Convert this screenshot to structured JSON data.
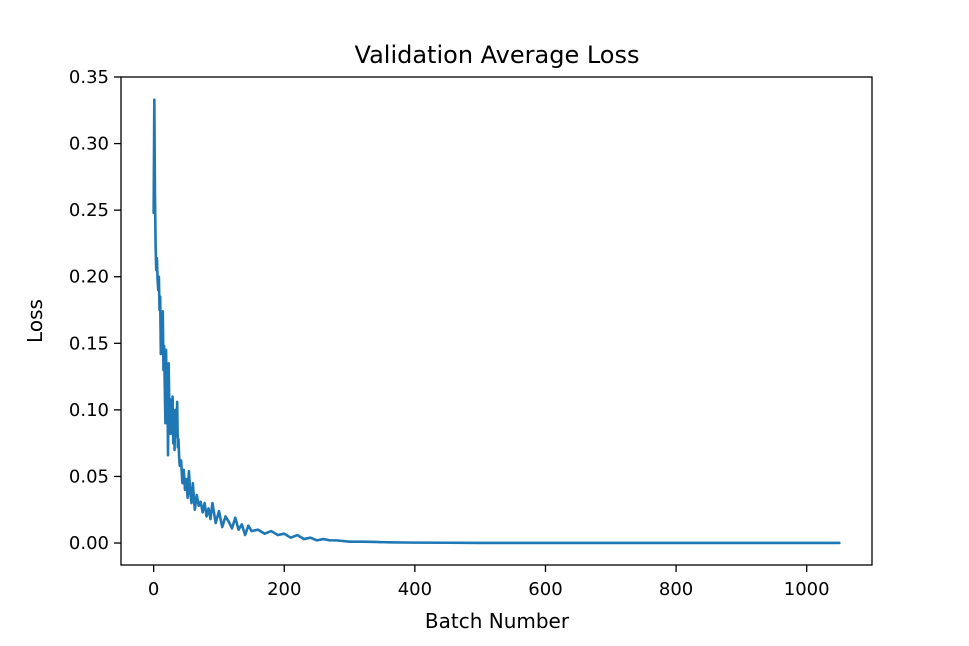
{
  "chart_data": {
    "type": "line",
    "title": "Validation Average Loss",
    "xlabel": "Batch Number",
    "ylabel": "Loss",
    "xlim": [
      -50,
      1100
    ],
    "ylim": [
      -0.0165,
      0.35
    ],
    "xticks": [
      0,
      200,
      400,
      600,
      800,
      1000
    ],
    "xtick_labels": [
      "0",
      "200",
      "400",
      "600",
      "800",
      "1000"
    ],
    "yticks": [
      0.0,
      0.05,
      0.1,
      0.15,
      0.2,
      0.25,
      0.3,
      0.35
    ],
    "ytick_labels": [
      "0.00",
      "0.05",
      "0.10",
      "0.15",
      "0.20",
      "0.25",
      "0.30",
      "0.35"
    ],
    "grid": false,
    "series": [
      {
        "name": "Validation Average Loss",
        "color": "#1f77b4",
        "x": [
          0,
          1,
          2,
          3,
          4,
          5,
          6,
          7,
          8,
          9,
          10,
          11,
          12,
          13,
          14,
          15,
          16,
          17,
          18,
          19,
          20,
          21,
          22,
          23,
          24,
          25,
          26,
          27,
          28,
          29,
          30,
          31,
          32,
          33,
          34,
          35,
          36,
          37,
          38,
          39,
          40,
          42,
          44,
          46,
          48,
          50,
          52,
          54,
          56,
          58,
          60,
          63,
          66,
          69,
          72,
          75,
          78,
          81,
          84,
          87,
          90,
          95,
          100,
          105,
          110,
          115,
          120,
          125,
          130,
          135,
          140,
          145,
          150,
          160,
          170,
          180,
          190,
          200,
          210,
          220,
          230,
          240,
          250,
          260,
          270,
          280,
          300,
          320,
          340,
          360,
          380,
          400,
          450,
          500,
          550,
          600,
          700,
          800,
          900,
          1000,
          1050
        ],
        "values": [
          0.248,
          0.333,
          0.262,
          0.223,
          0.205,
          0.214,
          0.198,
          0.19,
          0.2,
          0.175,
          0.185,
          0.142,
          0.17,
          0.15,
          0.174,
          0.13,
          0.148,
          0.118,
          0.09,
          0.145,
          0.11,
          0.126,
          0.066,
          0.135,
          0.1,
          0.108,
          0.082,
          0.098,
          0.09,
          0.11,
          0.075,
          0.092,
          0.07,
          0.1,
          0.085,
          0.08,
          0.106,
          0.072,
          0.078,
          0.065,
          0.058,
          0.062,
          0.045,
          0.055,
          0.04,
          0.048,
          0.034,
          0.054,
          0.038,
          0.03,
          0.045,
          0.025,
          0.036,
          0.028,
          0.031,
          0.023,
          0.03,
          0.02,
          0.026,
          0.018,
          0.03,
          0.015,
          0.024,
          0.012,
          0.02,
          0.016,
          0.011,
          0.019,
          0.01,
          0.014,
          0.006,
          0.013,
          0.009,
          0.01,
          0.007,
          0.009,
          0.006,
          0.007,
          0.004,
          0.006,
          0.003,
          0.004,
          0.002,
          0.003,
          0.002,
          0.002,
          0.001,
          0.001,
          0.0008,
          0.0005,
          0.0004,
          0.0003,
          0.0002,
          0.0001,
          0.0001,
          0.0001,
          0.0001,
          0.0001,
          0.0001,
          0.0001,
          0.0001
        ]
      }
    ]
  }
}
